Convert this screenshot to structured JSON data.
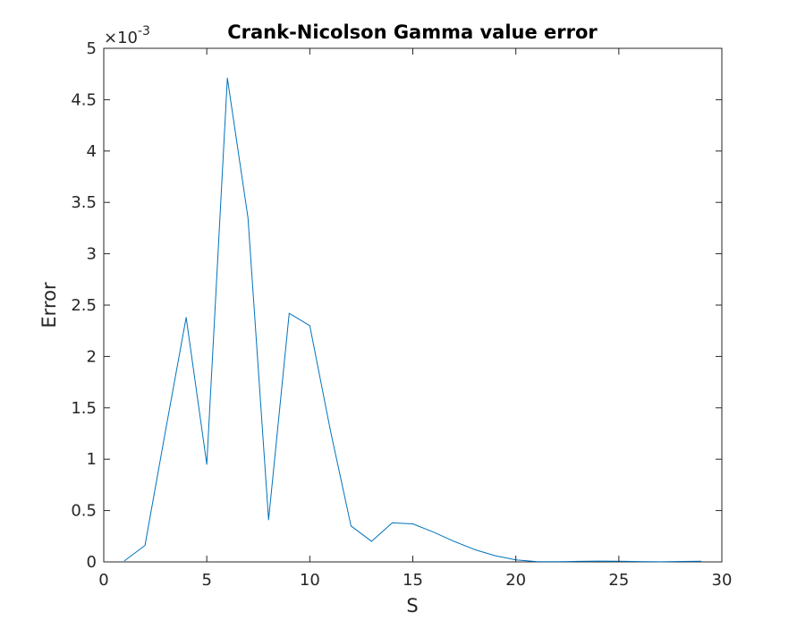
{
  "chart_data": {
    "type": "line",
    "title": "Crank-Nicolson Gamma value error",
    "xlabel": "S",
    "ylabel": "Error",
    "xlim": [
      0,
      30
    ],
    "ylim": [
      0,
      0.005
    ],
    "xticks": [
      0,
      5,
      10,
      15,
      20,
      25,
      30
    ],
    "yticks": [
      0,
      0.0005,
      0.001,
      0.0015,
      0.002,
      0.0025,
      0.003,
      0.0035,
      0.004,
      0.0045,
      0.005
    ],
    "ytick_labels": [
      "0",
      "0.5",
      "1",
      "1.5",
      "2",
      "2.5",
      "3",
      "3.5",
      "4",
      "4.5",
      "5"
    ],
    "y_exponent_label": "×10",
    "y_exponent_power": "-3",
    "grid": false,
    "series": [
      {
        "color": "#0072BD",
        "x": [
          1,
          2,
          3,
          4,
          5,
          6,
          7,
          8,
          9,
          10,
          11,
          12,
          13,
          14,
          15,
          16,
          17,
          18,
          19,
          20,
          21,
          22,
          23,
          24,
          25,
          26,
          27,
          28,
          29
        ],
        "y": [
          1e-05,
          0.00016,
          0.00128,
          0.00238,
          0.00095,
          0.00471,
          0.00335,
          0.00041,
          0.00242,
          0.0023,
          0.00128,
          0.00035,
          0.0002,
          0.00038,
          0.00037,
          0.00029,
          0.0002,
          0.00012,
          6e-05,
          2e-05,
          3e-06,
          2e-06,
          5e-06,
          8e-06,
          6e-06,
          3e-06,
          1e-06,
          4e-06,
          6e-06
        ]
      }
    ]
  }
}
